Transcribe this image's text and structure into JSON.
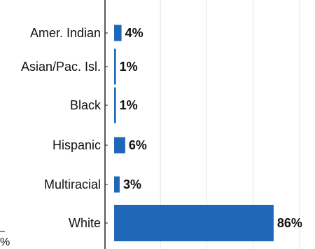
{
  "chart_data": {
    "type": "bar",
    "orientation": "horizontal",
    "categories": [
      "Amer. Indian",
      "Asian/Pac. Isl.",
      "Black",
      "Hispanic",
      "Multiracial",
      "White"
    ],
    "values": [
      4,
      1,
      1,
      6,
      3,
      86
    ],
    "value_labels": [
      "4%",
      "1%",
      "1%",
      "6%",
      "3%",
      "86%"
    ],
    "bar_color": "#1f68b8",
    "grid": true,
    "xlim": [
      0,
      100
    ],
    "cut_off_axis_text": "%"
  }
}
